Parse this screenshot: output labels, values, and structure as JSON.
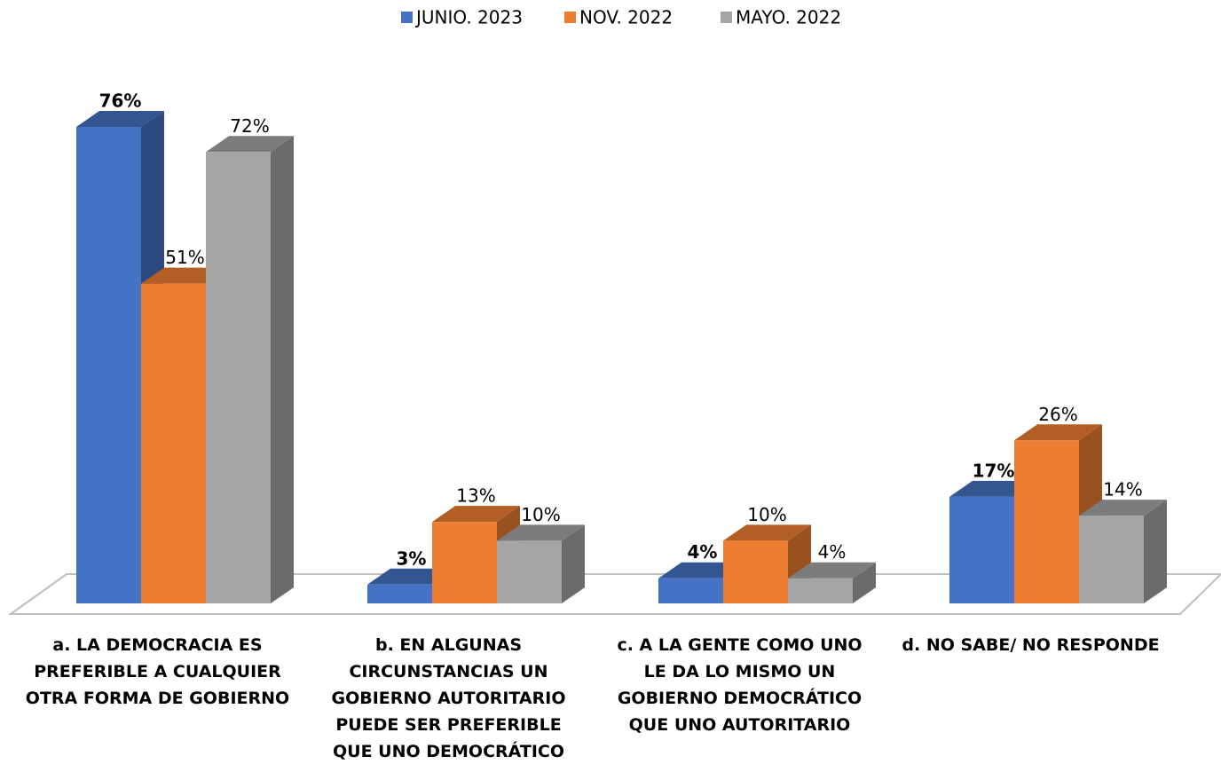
{
  "chart_data": {
    "type": "bar3d",
    "categories": [
      "a. LA DEMOCRACIA ES PREFERIBLE A CUALQUIER OTRA FORMA DE GOBIERNO",
      "b. EN ALGUNAS CIRCUNSTANCIAS UN GOBIERNO AUTORITARIO PUEDE SER PREFERIBLE QUE UNO DEMOCRÁTICO",
      "c. A LA GENTE COMO UNO LE DA LO MISMO UN GOBIERNO DEMOCRÁTICO QUE UNO AUTORITARIO",
      "d. NO SABE/ NO RESPONDE"
    ],
    "series": [
      {
        "name": "JUNIO. 2023",
        "color": "#4472c4",
        "values": [
          76,
          3,
          4,
          17
        ],
        "value_labels": [
          "76%",
          "3%",
          "4%",
          "17%"
        ]
      },
      {
        "name": "NOV. 2022",
        "color": "#ed7d31",
        "values": [
          51,
          13,
          10,
          26
        ],
        "value_labels": [
          "51%",
          "13%",
          "10%",
          "26%"
        ]
      },
      {
        "name": "MAYO. 2022",
        "color": "#a5a5a5",
        "values": [
          72,
          10,
          4,
          14
        ],
        "value_labels": [
          "72%",
          "10%",
          "4%",
          "14%"
        ]
      }
    ],
    "legend": "top"
  }
}
